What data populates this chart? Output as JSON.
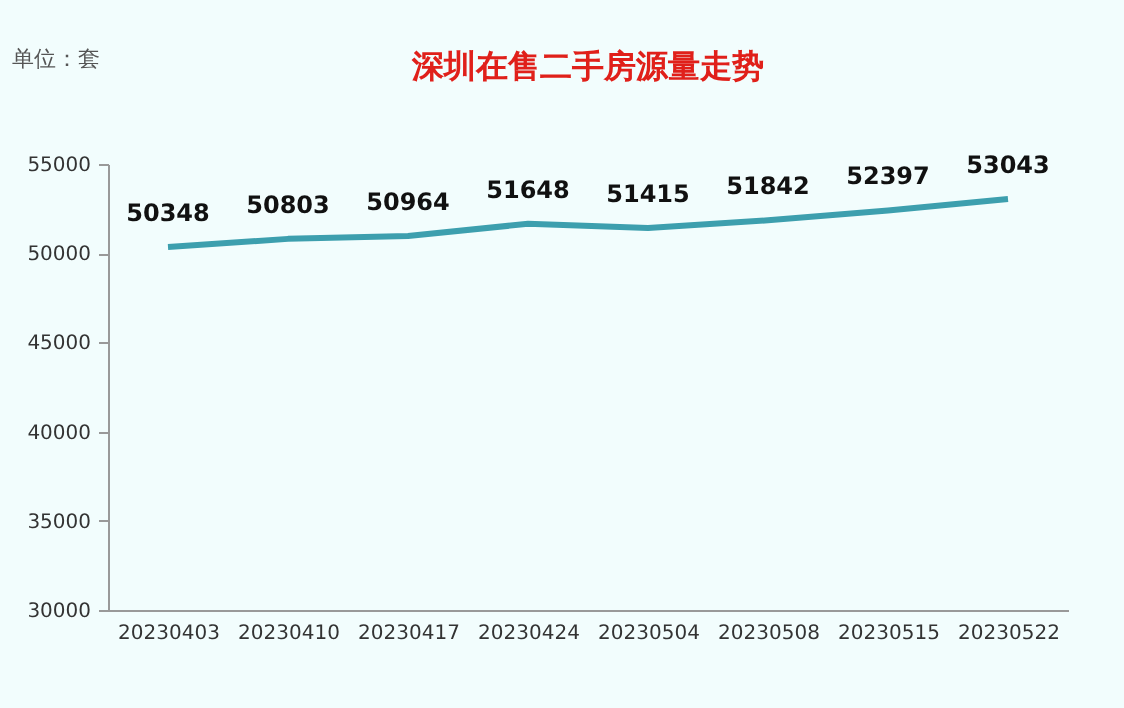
{
  "chart_data": {
    "type": "line",
    "title": "深圳在售二手房源量走势",
    "annotations": [
      "单位：套"
    ],
    "categories": [
      "20230403",
      "20230410",
      "20230417",
      "20230424",
      "20230504",
      "20230508",
      "20230515",
      "20230522"
    ],
    "series": [
      {
        "color": "#3d9fae",
        "values": [
          50348,
          50803,
          50964,
          51648,
          51415,
          51842,
          52397,
          53043
        ]
      }
    ],
    "ylim": [
      30000,
      55000
    ],
    "yticks": [
      30000,
      35000,
      40000,
      45000,
      50000,
      55000
    ],
    "grid": false,
    "marker": "none",
    "line_style": "solid",
    "data_labels": true
  }
}
